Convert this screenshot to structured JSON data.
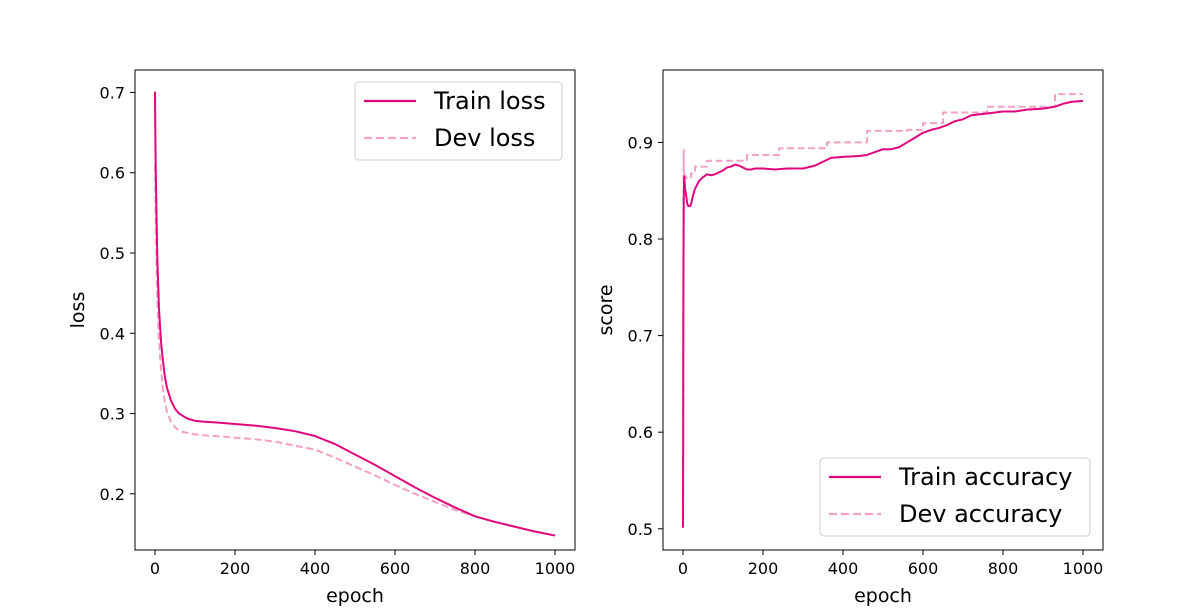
{
  "chart_data": [
    {
      "type": "line",
      "title": "",
      "xlabel": "epoch",
      "ylabel": "loss",
      "xlim": [
        -50,
        1050
      ],
      "ylim": [
        0.13,
        0.728
      ],
      "xticks": [
        0,
        200,
        400,
        600,
        800,
        1000
      ],
      "xtick_labels": [
        "0",
        "200",
        "400",
        "600",
        "800",
        "1000"
      ],
      "yticks": [
        0.2,
        0.3,
        0.4,
        0.5,
        0.6,
        0.7
      ],
      "ytick_labels": [
        "0.2",
        "0.3",
        "0.4",
        "0.5",
        "0.6",
        "0.7"
      ],
      "legend_position": "top-right",
      "series": [
        {
          "name": "Train loss",
          "style": "solid",
          "color": "#e0077d",
          "x": [
            0,
            1,
            2,
            4,
            6,
            8,
            10,
            15,
            20,
            25,
            30,
            40,
            50,
            60,
            70,
            80,
            100,
            120,
            150,
            200,
            250,
            300,
            350,
            400,
            450,
            500,
            550,
            600,
            650,
            700,
            750,
            800,
            850,
            900,
            950,
            1000
          ],
          "y": [
            0.701,
            0.64,
            0.6,
            0.54,
            0.49,
            0.46,
            0.43,
            0.39,
            0.365,
            0.345,
            0.332,
            0.316,
            0.306,
            0.3,
            0.297,
            0.294,
            0.291,
            0.29,
            0.289,
            0.287,
            0.285,
            0.282,
            0.278,
            0.272,
            0.262,
            0.249,
            0.236,
            0.222,
            0.208,
            0.195,
            0.183,
            0.172,
            0.165,
            0.159,
            0.153,
            0.148
          ]
        },
        {
          "name": "Dev loss",
          "style": "dashed",
          "color": "#f4a0c6",
          "x": [
            0,
            1,
            2,
            4,
            6,
            8,
            10,
            15,
            20,
            25,
            30,
            40,
            50,
            60,
            70,
            80,
            100,
            120,
            150,
            200,
            250,
            300,
            350,
            400,
            450,
            500,
            550,
            600,
            650,
            700,
            750,
            800,
            850,
            900,
            950,
            1000
          ],
          "y": [
            0.61,
            0.57,
            0.53,
            0.48,
            0.44,
            0.41,
            0.39,
            0.355,
            0.33,
            0.313,
            0.302,
            0.29,
            0.283,
            0.279,
            0.277,
            0.276,
            0.274,
            0.273,
            0.272,
            0.27,
            0.268,
            0.265,
            0.26,
            0.255,
            0.245,
            0.234,
            0.223,
            0.211,
            0.2,
            0.19,
            0.18,
            0.172,
            0.165,
            0.159,
            0.153,
            0.148
          ]
        }
      ]
    },
    {
      "type": "line",
      "title": "",
      "xlabel": "epoch",
      "ylabel": "score",
      "xlim": [
        -50,
        1050
      ],
      "ylim": [
        0.478,
        0.975
      ],
      "xticks": [
        0,
        200,
        400,
        600,
        800,
        1000
      ],
      "xtick_labels": [
        "0",
        "200",
        "400",
        "600",
        "800",
        "1000"
      ],
      "yticks": [
        0.5,
        0.6,
        0.7,
        0.8,
        0.9
      ],
      "ytick_labels": [
        "0.5",
        "0.6",
        "0.7",
        "0.8",
        "0.9"
      ],
      "legend_position": "bottom-right",
      "series": [
        {
          "name": "Train accuracy",
          "style": "solid",
          "color": "#e0077d",
          "x": [
            0,
            0.5,
            1,
            1.5,
            2,
            3,
            4,
            5,
            6,
            8,
            10,
            12,
            14,
            16,
            18,
            20,
            25,
            30,
            40,
            50,
            60,
            70,
            80,
            90,
            100,
            110,
            120,
            130,
            140,
            150,
            160,
            170,
            180,
            190,
            200,
            230,
            260,
            300,
            330,
            350,
            370,
            400,
            440,
            460,
            480,
            500,
            520,
            540,
            560,
            580,
            600,
            620,
            640,
            660,
            680,
            700,
            720,
            740,
            760,
            780,
            800,
            830,
            860,
            900,
            930,
            950,
            970,
            1000
          ],
          "y": [
            0.501,
            0.61,
            0.745,
            0.8,
            0.845,
            0.865,
            0.86,
            0.852,
            0.85,
            0.845,
            0.838,
            0.835,
            0.834,
            0.834,
            0.834,
            0.836,
            0.845,
            0.852,
            0.86,
            0.864,
            0.867,
            0.866,
            0.867,
            0.869,
            0.871,
            0.874,
            0.875,
            0.877,
            0.876,
            0.874,
            0.872,
            0.872,
            0.873,
            0.873,
            0.873,
            0.872,
            0.873,
            0.873,
            0.876,
            0.88,
            0.884,
            0.885,
            0.886,
            0.887,
            0.89,
            0.893,
            0.893,
            0.895,
            0.9,
            0.905,
            0.91,
            0.913,
            0.915,
            0.918,
            0.922,
            0.924,
            0.928,
            0.929,
            0.93,
            0.931,
            0.932,
            0.932,
            0.934,
            0.935,
            0.937,
            0.94,
            0.942,
            0.943
          ]
        },
        {
          "name": "Dev accuracy",
          "style": "dashed",
          "color": "#f4a0c6",
          "step": true,
          "x": [
            0,
            0.5,
            1,
            1.5,
            2,
            3,
            5,
            8,
            20,
            30,
            60,
            160,
            240,
            360,
            460,
            560,
            600,
            650,
            760,
            930,
            1000
          ],
          "y": [
            0.62,
            0.74,
            0.85,
            0.892,
            0.87,
            0.862,
            0.865,
            0.863,
            0.868,
            0.875,
            0.881,
            0.887,
            0.894,
            0.9,
            0.912,
            0.913,
            0.92,
            0.931,
            0.937,
            0.95,
            0.95
          ]
        }
      ]
    }
  ]
}
